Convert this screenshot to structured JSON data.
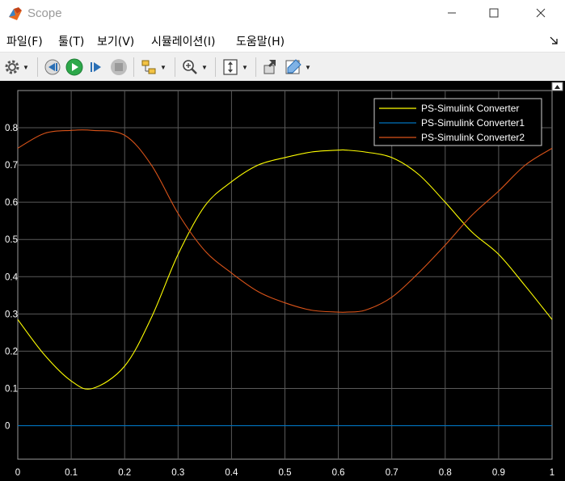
{
  "window": {
    "title": "Scope",
    "icon": "matlab-logo-icon",
    "controls": [
      "minimize-icon",
      "maximize-icon",
      "close-icon"
    ]
  },
  "menu": {
    "items": [
      "파일(F)",
      "툴(T)",
      "보기(V)",
      "시뮬레이션(I)",
      "도움말(H)"
    ]
  },
  "toolbar": {
    "buttons": [
      "settings-icon",
      "step-back-icon",
      "run-icon",
      "step-forward-icon",
      "stop-icon",
      "signal-select-icon",
      "zoom-icon",
      "fit-axes-icon",
      "undock-icon",
      "highlight-icon"
    ]
  },
  "colors": {
    "plot_background": "#000000",
    "grid": "#5a5a5a",
    "series": [
      "#ffff00",
      "#0072bd",
      "#d95319"
    ]
  },
  "chart_data": {
    "type": "line",
    "title": "",
    "xlabel": "",
    "ylabel": "",
    "xlim": [
      0,
      1
    ],
    "ylim": [
      -0.09,
      0.9
    ],
    "xticks": [
      "0",
      "0.1",
      "0.2",
      "0.3",
      "0.4",
      "0.5",
      "0.6",
      "0.7",
      "0.8",
      "0.9",
      "1"
    ],
    "yticks": [
      "0",
      "0.1",
      "0.2",
      "0.3",
      "0.4",
      "0.5",
      "0.6",
      "0.7",
      "0.8"
    ],
    "grid": true,
    "legend_position": "top-right",
    "x": [
      0,
      0.05,
      0.1,
      0.14,
      0.2,
      0.25,
      0.3,
      0.35,
      0.4,
      0.45,
      0.5,
      0.55,
      0.6,
      0.615,
      0.65,
      0.7,
      0.75,
      0.8,
      0.85,
      0.9,
      0.95,
      1.0
    ],
    "series": [
      {
        "name": "PS-Simulink Converter",
        "color": "#ffff00",
        "values": [
          0.285,
          0.19,
          0.12,
          0.1,
          0.16,
          0.29,
          0.46,
          0.59,
          0.655,
          0.7,
          0.72,
          0.735,
          0.74,
          0.74,
          0.735,
          0.72,
          0.675,
          0.6,
          0.52,
          0.46,
          0.375,
          0.285
        ]
      },
      {
        "name": "PS-Simulink Converter1",
        "color": "#0072bd",
        "values": [
          0,
          0,
          0,
          0,
          0,
          0,
          0,
          0,
          0,
          0,
          0,
          0,
          0,
          0,
          0,
          0,
          0,
          0,
          0,
          0,
          0,
          0
        ]
      },
      {
        "name": "PS-Simulink Converter2",
        "color": "#d95319",
        "values": [
          0.745,
          0.785,
          0.793,
          0.793,
          0.78,
          0.7,
          0.57,
          0.47,
          0.41,
          0.36,
          0.33,
          0.31,
          0.305,
          0.305,
          0.31,
          0.345,
          0.41,
          0.485,
          0.565,
          0.63,
          0.7,
          0.745
        ]
      }
    ]
  }
}
